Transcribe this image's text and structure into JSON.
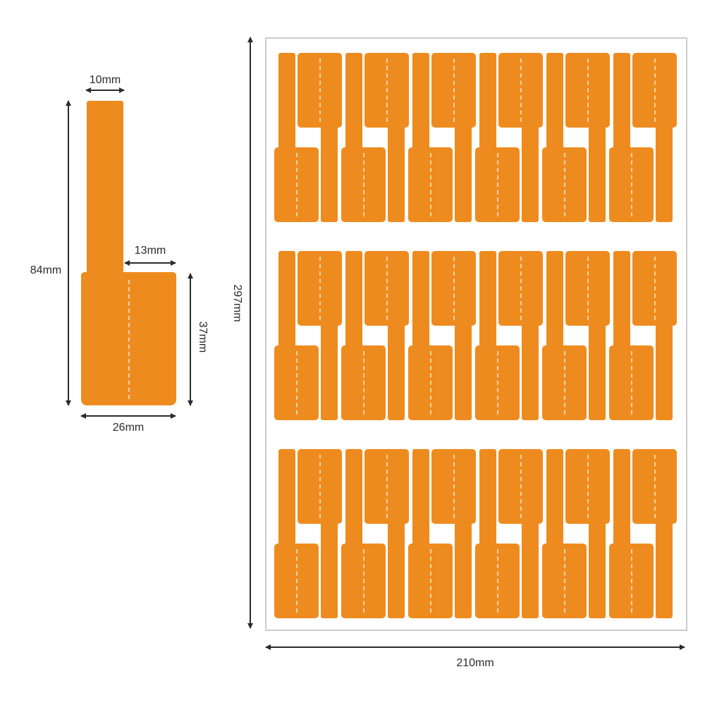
{
  "figure": {
    "type": "cable-label-dimension-diagram",
    "single_label": {
      "strip_width_label": "10mm",
      "total_height_label": "84mm",
      "notch_width_label": "13mm",
      "body_height_label": "37mm",
      "body_width_label": "26mm"
    },
    "sheet": {
      "width_label": "210mm",
      "height_label": "297mm",
      "rows": 3,
      "pairs_per_row": 6,
      "labels_per_row": 12,
      "total_labels": 36
    },
    "colors": {
      "label": "#EE8B1F",
      "fold_dash": "rgba(255,255,255,0.6)",
      "dimension": "#2b2b2b",
      "sheet_border": "#cccccc",
      "background": "#ffffff"
    }
  }
}
